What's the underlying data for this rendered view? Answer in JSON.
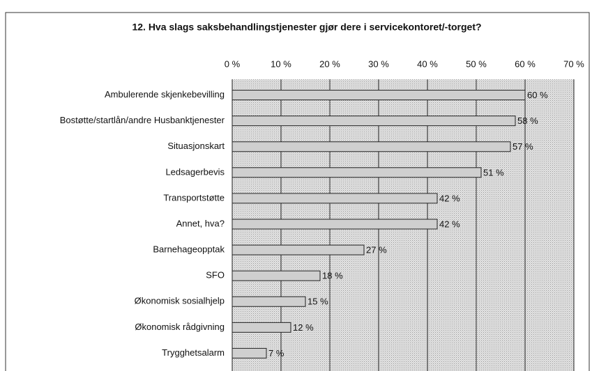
{
  "chart_data": {
    "type": "bar",
    "orientation": "horizontal",
    "title": "12. Hva slags saksbehandlingstjenester gjør dere i servicekontoret/-torget?",
    "categories": [
      "Ambulerende skjenkebevilling",
      "Bostøtte/startlån/andre Husbanktjenester",
      "Situasjonskart",
      "Ledsagerbevis",
      "Transportstøtte",
      "Annet, hva?",
      "Barnehageopptak",
      "SFO",
      "Økonomisk sosialhjelp",
      "Økonomisk rådgivning",
      "Trygghetsalarm"
    ],
    "values": [
      60,
      58,
      57,
      51,
      42,
      42,
      27,
      18,
      15,
      12,
      7
    ],
    "value_labels": [
      "60 %",
      "58 %",
      "57 %",
      "51 %",
      "42 %",
      "42 %",
      "27 %",
      "18 %",
      "15 %",
      "12 %",
      "7 %"
    ],
    "color": "#cfcfcf",
    "xlim": [
      0,
      70
    ],
    "xticks": [
      {
        "value": 0,
        "label": "0 %"
      },
      {
        "value": 10,
        "label": "10 %"
      },
      {
        "value": 20,
        "label": "20 %"
      },
      {
        "value": 30,
        "label": "30 %"
      },
      {
        "value": 40,
        "label": "40 %"
      },
      {
        "value": 50,
        "label": "50 %"
      },
      {
        "value": 60,
        "label": "60 %"
      },
      {
        "value": 70,
        "label": "70 %"
      }
    ],
    "grid": true
  }
}
